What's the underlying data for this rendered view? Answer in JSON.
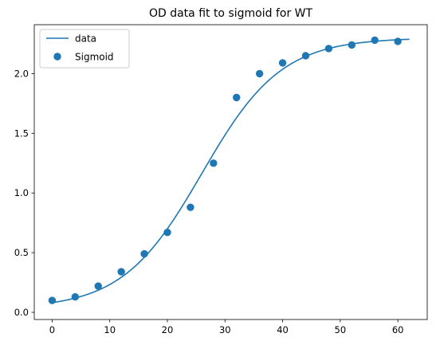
{
  "chart_data": {
    "type": "scatter",
    "title": "OD data fit to sigmoid for WT",
    "xlabel": "",
    "ylabel": "",
    "xlim": [
      -3.1,
      65.1
    ],
    "ylim": [
      -0.06,
      2.41
    ],
    "xticks": [
      0,
      10,
      20,
      30,
      40,
      50,
      60
    ],
    "xtick_labels": [
      "0",
      "10",
      "20",
      "30",
      "40",
      "50",
      "60"
    ],
    "yticks": [
      0.0,
      0.5,
      1.0,
      1.5,
      2.0
    ],
    "ytick_labels": [
      "0.0",
      "0.5",
      "1.0",
      "1.5",
      "2.0"
    ],
    "grid": false,
    "legend_position": "upper-left",
    "series": [
      {
        "name": "data",
        "kind": "line",
        "color": "#1f77b4",
        "sigmoid": {
          "L": 2.27,
          "k": 0.145,
          "x0": 26.0,
          "b": 0.03
        },
        "x_range": [
          0,
          62
        ]
      },
      {
        "name": "Sigmoid",
        "kind": "scatter",
        "color": "#1f77b4",
        "x": [
          0,
          4,
          8,
          12,
          16,
          20,
          24,
          28,
          32,
          36,
          40,
          44,
          48,
          52,
          56,
          60
        ],
        "y": [
          0.1,
          0.13,
          0.22,
          0.34,
          0.49,
          0.67,
          0.88,
          1.25,
          1.8,
          2.0,
          2.09,
          2.15,
          2.21,
          2.24,
          2.28,
          2.27
        ]
      }
    ]
  }
}
